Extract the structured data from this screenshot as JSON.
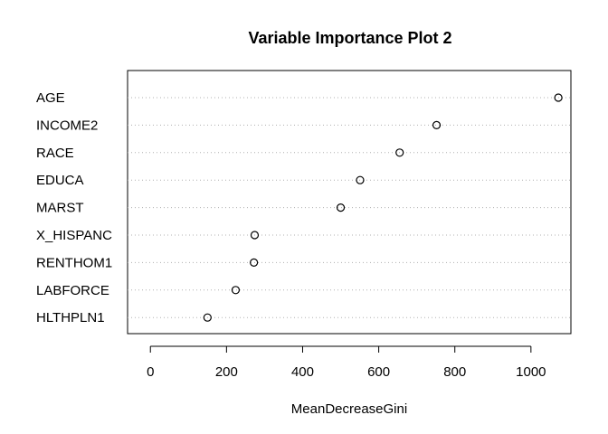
{
  "chart_data": {
    "type": "scatter",
    "subtype": "dotchart",
    "title": "Variable Importance Plot 2",
    "xlabel": "MeanDecreaseGini",
    "ylabel": "",
    "xlim": [
      -60,
      1105
    ],
    "xticks": [
      0,
      200,
      400,
      600,
      800,
      1000
    ],
    "grid": "dotted horizontal guide lines",
    "legend": "none",
    "marker": "open-circle",
    "categories": [
      "AGE",
      "INCOME2",
      "RACE",
      "EDUCA",
      "MARST",
      "X_HISPANC",
      "RENTHOM1",
      "LABFORCE",
      "HLTHPLN1"
    ],
    "values": [
      1072,
      752,
      655,
      551,
      500,
      274,
      272,
      224,
      150
    ]
  }
}
